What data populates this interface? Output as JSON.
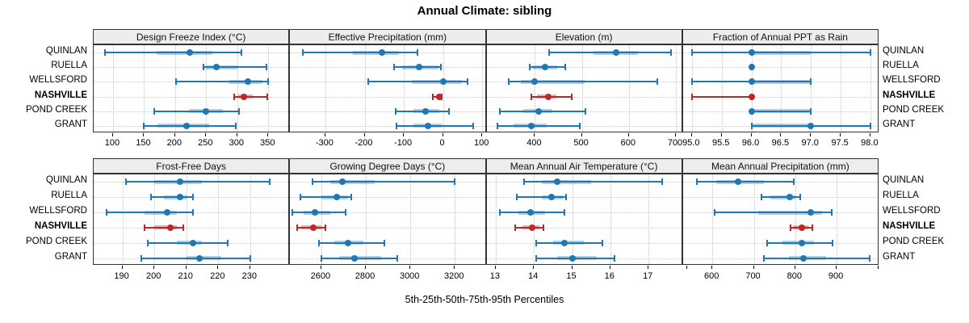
{
  "title": "Annual Climate: sibling",
  "caption": "5th-25th-50th-75th-95th Percentiles",
  "sites": [
    {
      "label": "QUINLAN",
      "highlight": false
    },
    {
      "label": "RUELLA",
      "highlight": false
    },
    {
      "label": "WELLSFORD",
      "highlight": false
    },
    {
      "label": "NASHVILLE",
      "highlight": true
    },
    {
      "label": "POND CREEK",
      "highlight": false
    },
    {
      "label": "GRANT",
      "highlight": false
    }
  ],
  "colors": {
    "normal": "#1f77b4",
    "normal_band": "rgba(31,119,180,0.35)",
    "highlight": "#c02626",
    "highlight_band": "rgba(192,38,38,0.35)",
    "grid": "#c3c3c3",
    "strip_bg": "#ededed",
    "border": "#333333"
  },
  "chart_data": {
    "type": "dotplot-percentiles",
    "percentiles": [
      "5th",
      "25th",
      "50th",
      "75th",
      "95th"
    ],
    "panels": [
      {
        "title": "Design Freeze Index (°C)",
        "row": 0,
        "col": 0,
        "xlim": [
          69,
          385
        ],
        "ticks": [
          100,
          150,
          200,
          250,
          300,
          350
        ],
        "tick_labels": [
          "100",
          "150",
          "200",
          "250",
          "300",
          "350"
        ],
        "series": [
          {
            "site": "QUINLAN",
            "values": [
              87,
              170,
              224,
              260,
              307
            ]
          },
          {
            "site": "RUELLA",
            "values": [
              245,
              250,
              266,
              300,
              347
            ]
          },
          {
            "site": "WELLSFORD",
            "values": [
              202,
              287,
              317,
              340,
              350
            ]
          },
          {
            "site": "NASHVILLE",
            "values": [
              295,
              301,
              311,
              325,
              348
            ]
          },
          {
            "site": "POND CREEK",
            "values": [
              167,
              222,
              249,
              277,
              303
            ]
          },
          {
            "site": "GRANT",
            "values": [
              150,
              172,
              218,
              255,
              298
            ]
          }
        ]
      },
      {
        "title": "Effective Precipitation (mm)",
        "row": 0,
        "col": 1,
        "xlim": [
          -390,
          111
        ],
        "ticks": [
          -300,
          -200,
          -100,
          0,
          100
        ],
        "tick_labels": [
          "-300",
          "-200",
          "-100",
          "0",
          "100"
        ],
        "series": [
          {
            "site": "QUINLAN",
            "values": [
              -358,
              -230,
              -155,
              -112,
              -65
            ]
          },
          {
            "site": "RUELLA",
            "values": [
              -125,
              -105,
              -60,
              -12,
              -5
            ]
          },
          {
            "site": "WELLSFORD",
            "values": [
              -190,
              -80,
              0,
              48,
              62
            ]
          },
          {
            "site": "NASHVILLE",
            "values": [
              -25,
              -18,
              -10,
              -6,
              -3
            ]
          },
          {
            "site": "POND CREEK",
            "values": [
              -120,
              -75,
              -45,
              -10,
              15
            ]
          },
          {
            "site": "GRANT",
            "values": [
              -118,
              -75,
              -38,
              -3,
              78
            ]
          }
        ]
      },
      {
        "title": "Elevation (m)",
        "row": 0,
        "col": 2,
        "xlim": [
          297,
          715
        ],
        "ticks": [
          400,
          500,
          600,
          700
        ],
        "tick_labels": [
          "400",
          "500",
          "600",
          "700"
        ],
        "series": [
          {
            "site": "QUINLAN",
            "values": [
              430,
              525,
              573,
              620,
              690
            ]
          },
          {
            "site": "RUELLA",
            "values": [
              388,
              395,
              422,
              448,
              465
            ]
          },
          {
            "site": "WELLSFORD",
            "values": [
              345,
              370,
              400,
              505,
              660
            ]
          },
          {
            "site": "NASHVILLE",
            "values": [
              393,
              405,
              428,
              446,
              478
            ]
          },
          {
            "site": "POND CREEK",
            "values": [
              325,
              375,
              408,
              437,
              507
            ]
          },
          {
            "site": "GRANT",
            "values": [
              320,
              355,
              393,
              425,
              495
            ]
          }
        ]
      },
      {
        "title": "Fraction of Annual PPT as Rain",
        "row": 0,
        "col": 3,
        "xlim": [
          94.85,
          98.15
        ],
        "ticks": [
          95.0,
          95.5,
          96.0,
          96.5,
          97.0,
          97.5,
          98.0
        ],
        "tick_labels": [
          "95.0",
          "95.5",
          "96.0",
          "96.5",
          "97.0",
          "97.5",
          "98.0"
        ],
        "series": [
          {
            "site": "QUINLAN",
            "values": [
              95.0,
              96.0,
              96.0,
              97.0,
              98.0
            ]
          },
          {
            "site": "RUELLA",
            "values": [
              96.0,
              96.0,
              96.0,
              96.0,
              96.0
            ]
          },
          {
            "site": "WELLSFORD",
            "values": [
              95.0,
              96.0,
              96.0,
              97.0,
              97.0
            ]
          },
          {
            "site": "NASHVILLE",
            "values": [
              95.0,
              96.0,
              96.0,
              96.0,
              96.0
            ]
          },
          {
            "site": "POND CREEK",
            "values": [
              96.0,
              96.0,
              96.0,
              97.0,
              97.0
            ]
          },
          {
            "site": "GRANT",
            "values": [
              96.0,
              96.0,
              97.0,
              97.0,
              98.0
            ]
          }
        ]
      },
      {
        "title": "Frost-Free Days",
        "row": 1,
        "col": 0,
        "xlim": [
          181,
          242.5
        ],
        "ticks": [
          190,
          200,
          210,
          220,
          230
        ],
        "tick_labels": [
          "190",
          "200",
          "210",
          "220",
          "230"
        ],
        "series": [
          {
            "site": "QUINLAN",
            "values": [
              191,
              200,
              208,
              215,
              236
            ]
          },
          {
            "site": "RUELLA",
            "values": [
              199,
              203,
              208,
              210,
              212
            ]
          },
          {
            "site": "WELLSFORD",
            "values": [
              185,
              197,
              204,
              207,
              212
            ]
          },
          {
            "site": "NASHVILLE",
            "values": [
              197,
              200,
              205,
              207,
              209
            ]
          },
          {
            "site": "POND CREEK",
            "values": [
              198,
              207,
              212,
              215,
              223
            ]
          },
          {
            "site": "GRANT",
            "values": [
              196,
              210,
              214,
              221,
              230
            ]
          }
        ]
      },
      {
        "title": "Growing Degree Days (°C)",
        "row": 1,
        "col": 1,
        "xlim": [
          2460,
          3342
        ],
        "ticks": [
          2600,
          2800,
          3000,
          3200
        ],
        "tick_labels": [
          "2600",
          "2800",
          "3000",
          "3200"
        ],
        "series": [
          {
            "site": "QUINLAN",
            "values": [
              2560,
              2640,
              2695,
              2840,
              3200
            ]
          },
          {
            "site": "RUELLA",
            "values": [
              2505,
              2600,
              2670,
              2720,
              2735
            ]
          },
          {
            "site": "WELLSFORD",
            "values": [
              2470,
              2520,
              2570,
              2640,
              2710
            ]
          },
          {
            "site": "NASHVILLE",
            "values": [
              2490,
              2510,
              2565,
              2600,
              2620
            ]
          },
          {
            "site": "POND CREEK",
            "values": [
              2590,
              2660,
              2720,
              2790,
              2885
            ]
          },
          {
            "site": "GRANT",
            "values": [
              2600,
              2680,
              2750,
              2870,
              2940
            ]
          }
        ]
      },
      {
        "title": "Mean Annual Air Temperature (°C)",
        "row": 1,
        "col": 2,
        "xlim": [
          12.76,
          17.9
        ],
        "ticks": [
          13,
          14,
          15,
          16,
          17,
          18
        ],
        "tick_labels": [
          "13",
          "14",
          "15",
          "16",
          "17",
          ""
        ],
        "series": [
          {
            "site": "QUINLAN",
            "values": [
              13.75,
              14.2,
              14.6,
              15.5,
              17.35
            ]
          },
          {
            "site": "RUELLA",
            "values": [
              13.55,
              14.2,
              14.45,
              14.75,
              14.85
            ]
          },
          {
            "site": "WELLSFORD",
            "values": [
              13.1,
              13.6,
              13.9,
              14.3,
              14.8
            ]
          },
          {
            "site": "NASHVILLE",
            "values": [
              13.5,
              13.7,
              13.95,
              14.15,
              14.25
            ]
          },
          {
            "site": "POND CREEK",
            "values": [
              14.05,
              14.5,
              14.8,
              15.3,
              15.8
            ]
          },
          {
            "site": "GRANT",
            "values": [
              14.05,
              14.6,
              15.0,
              15.65,
              16.1
            ]
          }
        ]
      },
      {
        "title": "Mean Annual Precipitation (mm)",
        "row": 1,
        "col": 3,
        "xlim": [
          529,
          1003
        ],
        "ticks": [
          600,
          700,
          800,
          900,
          1000
        ],
        "tick_labels": [
          "600",
          "700",
          "800",
          "900",
          ""
        ],
        "series": [
          {
            "site": "QUINLAN",
            "values": [
              563,
              610,
              662,
              725,
              797
            ]
          },
          {
            "site": "RUELLA",
            "values": [
              718,
              740,
              787,
              800,
              812
            ]
          },
          {
            "site": "WELLSFORD",
            "values": [
              605,
              710,
              838,
              865,
              888
            ]
          },
          {
            "site": "NASHVILLE",
            "values": [
              788,
              795,
              815,
              832,
              842
            ]
          },
          {
            "site": "POND CREEK",
            "values": [
              732,
              770,
              815,
              845,
              890
            ]
          },
          {
            "site": "GRANT",
            "values": [
              725,
              785,
              820,
              875,
              980
            ]
          }
        ]
      }
    ]
  }
}
